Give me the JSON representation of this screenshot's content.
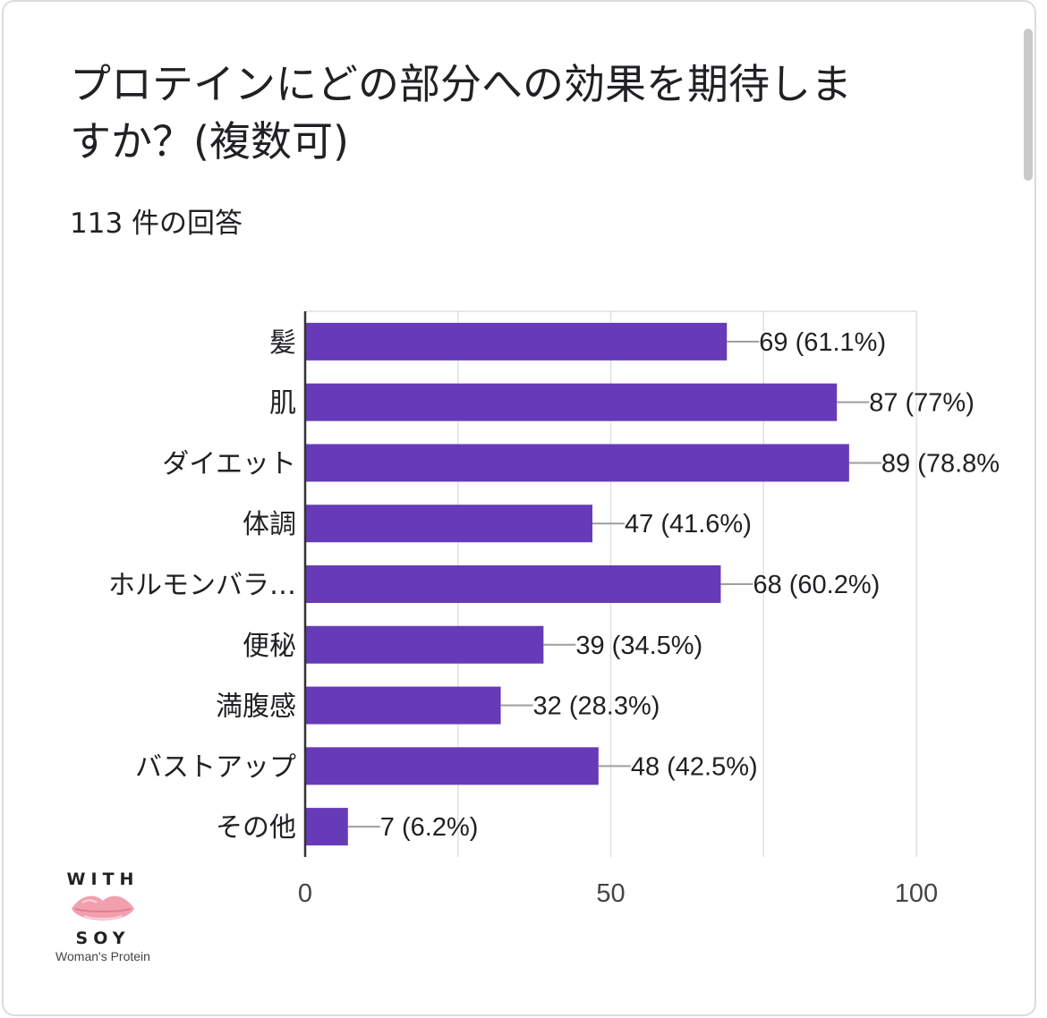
{
  "header": {
    "title": "プロテインにどの部分への効果を期待しますか？(複数可)",
    "response_count": "113 件の回答"
  },
  "logo": {
    "top_word": "WITH",
    "bottom_word": "SOY",
    "tagline": "Woman's Protein"
  },
  "colors": {
    "bar": "#673ab7",
    "grid": "#e0e0e0",
    "axis": "#333333",
    "leader": "#9e9e9e",
    "text": "#202124"
  },
  "chart_data": {
    "type": "bar",
    "orientation": "horizontal",
    "title": "プロテインにどの部分への効果を期待しますか？(複数可)",
    "categories": [
      "髪",
      "肌",
      "ダイエット",
      "体調",
      "ホルモンバラ…",
      "便秘",
      "満腹感",
      "バストアップ",
      "その他"
    ],
    "values": [
      69,
      87,
      89,
      47,
      68,
      39,
      32,
      48,
      7
    ],
    "labels": [
      "69 (61.1%)",
      "87 (77%)",
      "89 (78.8%",
      "47 (41.6%)",
      "68 (60.2%)",
      "39 (34.5%)",
      "32 (28.3%)",
      "48 (42.5%)",
      "7 (6.2%)"
    ],
    "xlim": [
      0,
      100
    ],
    "xticks": [
      0,
      50,
      100
    ],
    "grid_step": 25,
    "xlabel": "",
    "ylabel": ""
  }
}
